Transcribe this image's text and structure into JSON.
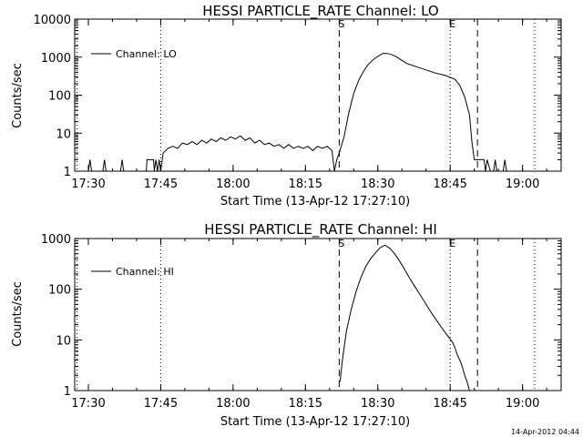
{
  "chart_data": [
    {
      "type": "line",
      "title": "HESSI PARTICLE_RATE Channel: LO",
      "xlabel": "Start Time (13-Apr-12 17:27:10)",
      "ylabel": "Counts/sec",
      "yscale": "log",
      "ylim": [
        1,
        10000
      ],
      "xlim": [
        "17:27:10",
        "19:08:00"
      ],
      "x_ticks": [
        "17:30",
        "17:45",
        "18:00",
        "18:15",
        "18:30",
        "18:45",
        "19:00"
      ],
      "y_ticks": [
        "1",
        "10",
        "100",
        "1000",
        "10000"
      ],
      "legend": {
        "label": "Channel: LO",
        "position": "top-left"
      },
      "markers": [
        {
          "label": "",
          "time": "17:27:40",
          "style": "dotted"
        },
        {
          "label": "",
          "time": "17:45:00",
          "style": "dotted"
        },
        {
          "label": "S",
          "time": "18:22:00",
          "style": "dashed"
        },
        {
          "label": "E",
          "time": "18:45:00",
          "style": "dotted"
        },
        {
          "label": "",
          "time": "18:50:40",
          "style": "dashed"
        },
        {
          "label": "",
          "time": "19:02:30",
          "style": "dotted"
        }
      ],
      "series": [
        {
          "name": "Channel: LO",
          "points": [
            [
              "17:27:10",
              1
            ],
            [
              "17:30:00",
              1
            ],
            [
              "17:30:20",
              2
            ],
            [
              "17:30:40",
              1
            ],
            [
              "17:33:00",
              1
            ],
            [
              "17:33:20",
              2
            ],
            [
              "17:33:40",
              1
            ],
            [
              "17:36:40",
              1
            ],
            [
              "17:37:00",
              2
            ],
            [
              "17:37:20",
              1
            ],
            [
              "17:42:00",
              1
            ],
            [
              "17:42:10",
              2
            ],
            [
              "17:43:30",
              2
            ],
            [
              "17:43:40",
              1
            ],
            [
              "17:44:00",
              2
            ],
            [
              "17:44:20",
              1
            ],
            [
              "17:44:40",
              2
            ],
            [
              "17:45:00",
              1
            ],
            [
              "17:45:30",
              3
            ],
            [
              "17:46:30",
              4
            ],
            [
              "17:47:30",
              4.5
            ],
            [
              "17:48:30",
              4
            ],
            [
              "17:49:30",
              5.5
            ],
            [
              "17:50:30",
              5
            ],
            [
              "17:51:30",
              6
            ],
            [
              "17:52:30",
              5
            ],
            [
              "17:53:30",
              6.5
            ],
            [
              "17:54:30",
              5.5
            ],
            [
              "17:55:30",
              7
            ],
            [
              "17:56:30",
              6
            ],
            [
              "17:57:30",
              7.5
            ],
            [
              "17:58:30",
              6.5
            ],
            [
              "17:59:30",
              8
            ],
            [
              "18:00:30",
              7
            ],
            [
              "18:01:30",
              8.5
            ],
            [
              "18:02:30",
              6.5
            ],
            [
              "18:03:30",
              7.5
            ],
            [
              "18:04:30",
              5.5
            ],
            [
              "18:05:30",
              6.5
            ],
            [
              "18:06:30",
              5
            ],
            [
              "18:07:30",
              5.5
            ],
            [
              "18:08:30",
              4.5
            ],
            [
              "18:09:30",
              5
            ],
            [
              "18:10:30",
              4
            ],
            [
              "18:11:30",
              5
            ],
            [
              "18:12:30",
              4
            ],
            [
              "18:13:30",
              4.5
            ],
            [
              "18:14:30",
              4
            ],
            [
              "18:15:30",
              4.5
            ],
            [
              "18:16:30",
              3.5
            ],
            [
              "18:17:30",
              4.5
            ],
            [
              "18:18:30",
              4
            ],
            [
              "18:19:30",
              4.5
            ],
            [
              "18:20:30",
              3.5
            ],
            [
              "18:21:00",
              1
            ],
            [
              "18:21:30",
              2
            ],
            [
              "18:22:00",
              3
            ],
            [
              "18:23:00",
              8
            ],
            [
              "18:24:00",
              35
            ],
            [
              "18:25:00",
              110
            ],
            [
              "18:26:00",
              240
            ],
            [
              "18:27:00",
              420
            ],
            [
              "18:28:00",
              640
            ],
            [
              "18:29:00",
              850
            ],
            [
              "18:30:00",
              1050
            ],
            [
              "18:31:00",
              1250
            ],
            [
              "18:32:00",
              1250
            ],
            [
              "18:33:00",
              1150
            ],
            [
              "18:34:00",
              1000
            ],
            [
              "18:35:00",
              820
            ],
            [
              "18:36:00",
              680
            ],
            [
              "18:38:00",
              560
            ],
            [
              "18:40:00",
              460
            ],
            [
              "18:42:00",
              380
            ],
            [
              "18:44:00",
              330
            ],
            [
              "18:46:00",
              260
            ],
            [
              "18:47:00",
              180
            ],
            [
              "18:48:00",
              90
            ],
            [
              "18:49:00",
              30
            ],
            [
              "18:49:30",
              6
            ],
            [
              "18:50:00",
              2
            ],
            [
              "18:52:00",
              2
            ],
            [
              "18:52:20",
              1
            ],
            [
              "18:52:40",
              2
            ],
            [
              "18:53:20",
              1
            ],
            [
              "18:54:00",
              1
            ],
            [
              "18:54:20",
              2
            ],
            [
              "18:54:40",
              1
            ],
            [
              "18:56:00",
              1
            ],
            [
              "18:56:20",
              2
            ],
            [
              "18:56:40",
              1
            ],
            [
              "19:02:30",
              1
            ]
          ]
        }
      ]
    },
    {
      "type": "line",
      "title": "HESSI PARTICLE_RATE Channel: HI",
      "xlabel": "Start Time (13-Apr-12 17:27:10)",
      "ylabel": "Counts/sec",
      "yscale": "log",
      "ylim": [
        1,
        1000
      ],
      "xlim": [
        "17:27:10",
        "19:08:00"
      ],
      "x_ticks": [
        "17:30",
        "17:45",
        "18:00",
        "18:15",
        "18:30",
        "18:45",
        "19:00"
      ],
      "y_ticks": [
        "1",
        "10",
        "100",
        "1000"
      ],
      "legend": {
        "label": "Channel: HI",
        "position": "top-left"
      },
      "markers": [
        {
          "label": "",
          "time": "17:27:40",
          "style": "dotted"
        },
        {
          "label": "",
          "time": "17:45:00",
          "style": "dotted"
        },
        {
          "label": "S",
          "time": "18:22:00",
          "style": "dashed"
        },
        {
          "label": "E",
          "time": "18:45:00",
          "style": "dotted"
        },
        {
          "label": "",
          "time": "18:50:40",
          "style": "dashed"
        },
        {
          "label": "",
          "time": "19:02:30",
          "style": "dotted"
        }
      ],
      "series": [
        {
          "name": "Channel: HI",
          "points": [
            [
              "18:22:10",
              1.5
            ],
            [
              "18:22:40",
              4
            ],
            [
              "18:23:30",
              15
            ],
            [
              "18:24:30",
              40
            ],
            [
              "18:25:30",
              90
            ],
            [
              "18:26:30",
              170
            ],
            [
              "18:27:30",
              280
            ],
            [
              "18:28:30",
              400
            ],
            [
              "18:29:30",
              520
            ],
            [
              "18:30:30",
              660
            ],
            [
              "18:31:30",
              740
            ],
            [
              "18:32:30",
              640
            ],
            [
              "18:33:30",
              500
            ],
            [
              "18:34:30",
              360
            ],
            [
              "18:35:30",
              250
            ],
            [
              "18:36:30",
              170
            ],
            [
              "18:37:30",
              120
            ],
            [
              "18:38:30",
              85
            ],
            [
              "18:39:30",
              60
            ],
            [
              "18:40:30",
              42
            ],
            [
              "18:41:30",
              30
            ],
            [
              "18:42:30",
              22
            ],
            [
              "18:43:30",
              16
            ],
            [
              "18:44:30",
              12
            ],
            [
              "18:45:30",
              9
            ],
            [
              "18:46:00",
              7
            ],
            [
              "18:46:30",
              5
            ],
            [
              "18:47:00",
              4
            ],
            [
              "18:47:30",
              3
            ],
            [
              "18:48:00",
              2
            ],
            [
              "18:48:30",
              1.5
            ],
            [
              "18:49:00",
              1
            ]
          ]
        }
      ]
    }
  ],
  "footer": {
    "timestamp": "14-Apr-2012 04:44"
  }
}
